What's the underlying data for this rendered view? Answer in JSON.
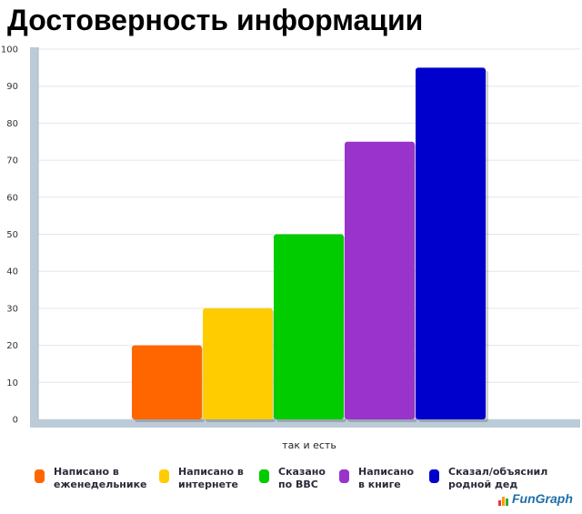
{
  "title": "Достоверность информации",
  "chart_data": {
    "type": "bar",
    "title": "Достоверность информации",
    "xlabel": "так и есть",
    "ylabel": "",
    "ylim": [
      0,
      100
    ],
    "yticks": [
      0,
      10,
      20,
      30,
      40,
      50,
      60,
      70,
      80,
      90,
      100
    ],
    "grid": true,
    "legend_position": "bottom",
    "categories": [
      "так и есть"
    ],
    "series": [
      {
        "name": "Написано в\nеженедельнике",
        "values": [
          20
        ],
        "color": "#ff6600"
      },
      {
        "name": "Написано в\nинтернете",
        "values": [
          30
        ],
        "color": "#ffcc00"
      },
      {
        "name": "Сказано\nпо BBC",
        "values": [
          50
        ],
        "color": "#00cc00"
      },
      {
        "name": "Написано\nв книге",
        "values": [
          75
        ],
        "color": "#9933cc"
      },
      {
        "name": "Сказал/объяснил\nродной дед",
        "values": [
          95
        ],
        "color": "#0000cc"
      }
    ]
  },
  "logo": {
    "text": "FunGraph"
  }
}
